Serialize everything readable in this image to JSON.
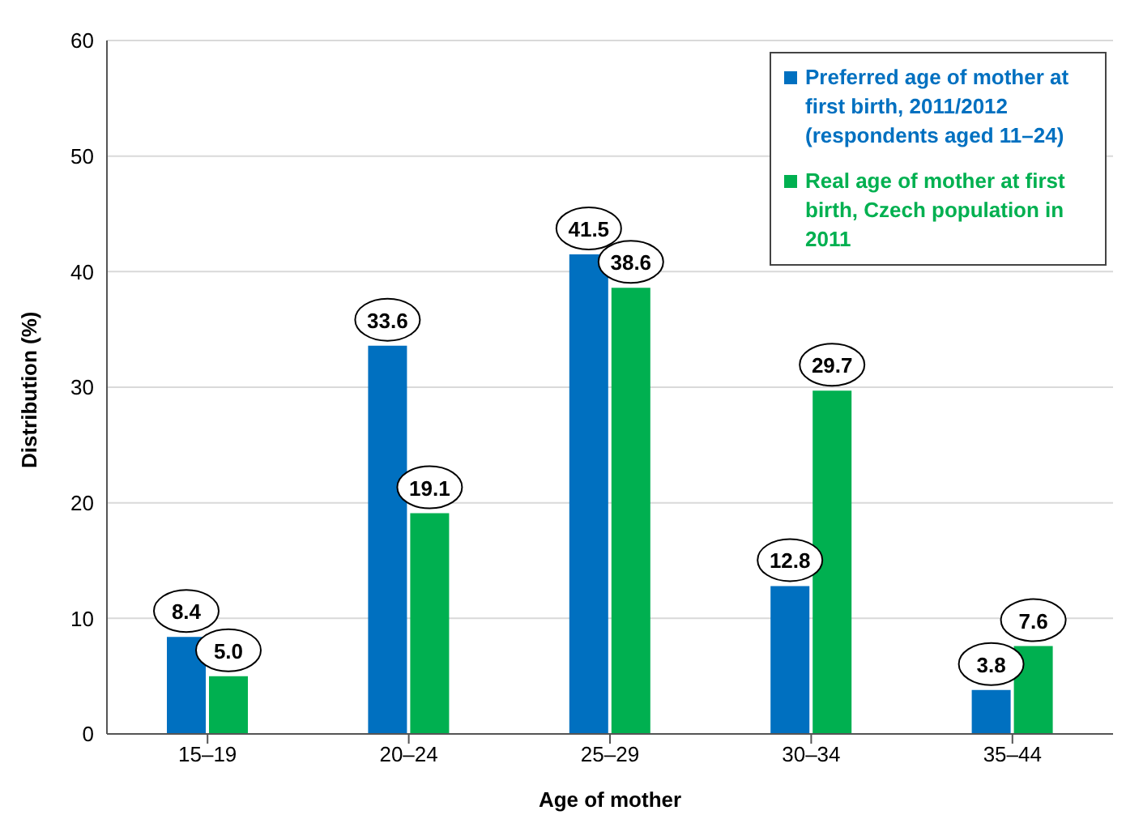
{
  "chart_data": {
    "type": "bar",
    "xlabel": "Age of mother",
    "ylabel": "Distribution (%)",
    "categories": [
      "15–19",
      "20–24",
      "25–29",
      "30–34",
      "35–44"
    ],
    "series": [
      {
        "name": "Preferred age of mother at first birth, 2011/2012 (respondents aged 11–24)",
        "color": "#0070c0",
        "values": [
          8.4,
          33.6,
          41.5,
          12.8,
          3.8
        ],
        "value_labels": [
          "8.4",
          "33.6",
          "41.5",
          "12.8",
          "3.8"
        ]
      },
      {
        "name": "Real age of mother at first birth, Czech population in 2011",
        "color": "#00b050",
        "values": [
          5.0,
          19.1,
          38.6,
          29.7,
          7.6
        ],
        "value_labels": [
          "5.0",
          "19.1",
          "38.6",
          "29.7",
          "7.6"
        ]
      }
    ],
    "ylim": [
      0,
      60
    ],
    "yticks": [
      0,
      10,
      20,
      30,
      40,
      50,
      60
    ],
    "grid": "y",
    "legend": "top right"
  }
}
